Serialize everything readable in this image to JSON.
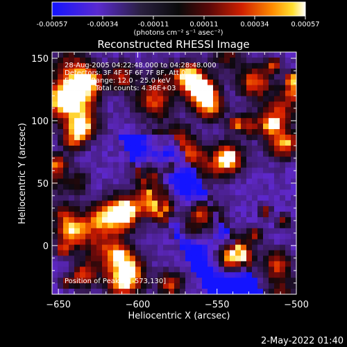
{
  "chart_data": {
    "type": "heatmap",
    "title": "Reconstructed RHESSI Image",
    "xlabel": "Heliocentric X (arcsec)",
    "ylabel": "Heliocentric Y (arcsec)",
    "xlim": [
      -654,
      -500
    ],
    "ylim": [
      -39,
      155
    ],
    "xticks": [
      -650,
      -600,
      -550,
      -500
    ],
    "yticks": [
      0,
      50,
      100,
      150
    ],
    "colorbar": {
      "min": -0.00057,
      "max": 0.00057,
      "tick_labels": [
        "-0.00057",
        "-0.00034",
        "-0.00011",
        "0.00011",
        "0.00034",
        "0.00057"
      ],
      "units_label": "(photons cm⁻² s⁻¹ asec⁻²)"
    },
    "annotations": [
      "28-Aug-2005 04:22:48.000 to 04:28:48.000",
      "Detectors: 3F 4F 5F 6F 7F 8F, Att 0",
      "Energy Range: 12.0 - 25.0 keV",
      "Clean     Total counts: 4.36E+03"
    ],
    "peak_label": "Position of Peak = [-573,130]",
    "peak_position": [
      -573,
      130
    ],
    "grid": false
  },
  "footer": {
    "timestamp": "2-May-2022 01:40"
  },
  "colors": {
    "background": "#000000",
    "text": "#ffffff",
    "colormap_low": "#1a1aff",
    "colormap_mid": "#141414",
    "colormap_high": "#ffffff"
  }
}
